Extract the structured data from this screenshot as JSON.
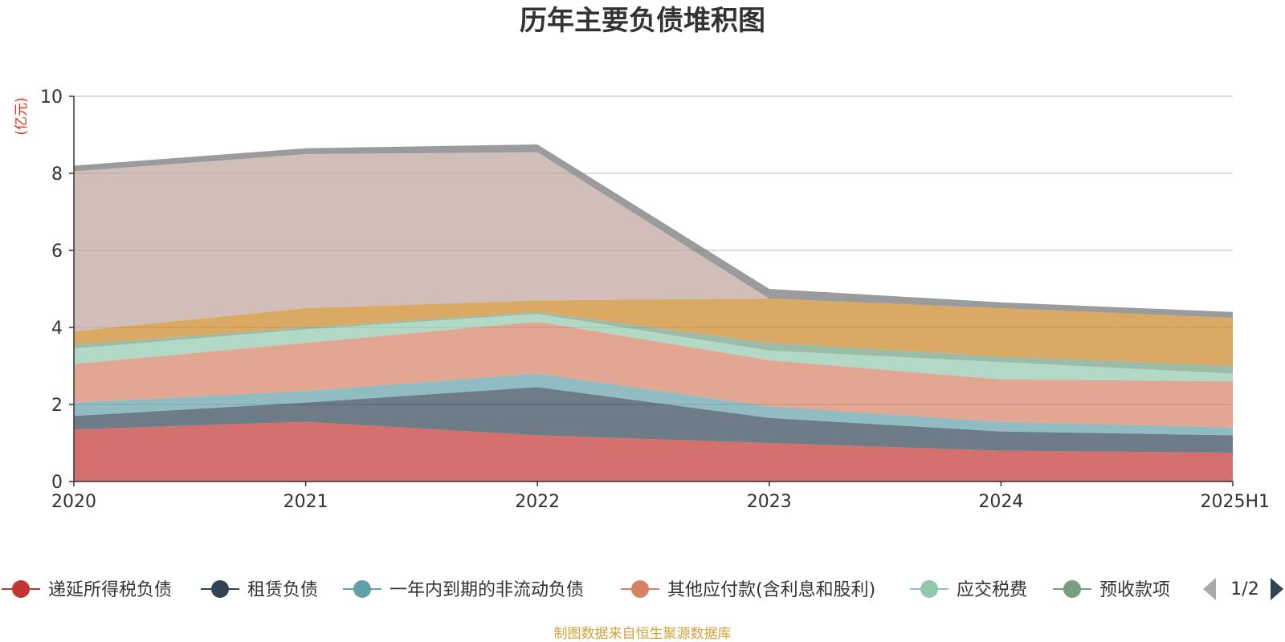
{
  "chart_data": {
    "type": "area",
    "stacked": true,
    "title": "历年主要负债堆积图",
    "unit": "(亿元)",
    "x": [
      "2020",
      "2021",
      "2022",
      "2023",
      "2024",
      "2025H1"
    ],
    "ylim": [
      0,
      10
    ],
    "yticks": [
      0,
      2,
      4,
      6,
      8,
      10
    ],
    "grid": true,
    "legend_position": "bottom",
    "legend_page": "1/2",
    "series": [
      {
        "name": "递延所得税负债",
        "color": "#c23531",
        "values": [
          1.35,
          1.55,
          1.2,
          1.0,
          0.8,
          0.75
        ]
      },
      {
        "name": "租赁负债",
        "color": "#2f4554",
        "values": [
          0.35,
          0.5,
          1.25,
          0.65,
          0.5,
          0.45
        ]
      },
      {
        "name": "一年内到期的非流动负债",
        "color": "#61a0a8",
        "values": [
          0.35,
          0.3,
          0.35,
          0.3,
          0.25,
          0.2
        ]
      },
      {
        "name": "其他应付款(含利息和股利)",
        "color": "#d48265",
        "values": [
          1.0,
          1.25,
          1.35,
          1.2,
          1.1,
          1.2
        ]
      },
      {
        "name": "应交税费",
        "color": "#91c7ae",
        "values": [
          0.4,
          0.35,
          0.2,
          0.25,
          0.45,
          0.2
        ]
      },
      {
        "name": "预收款项",
        "color": "#749f83",
        "values": [
          0.1,
          0.05,
          0.05,
          0.2,
          0.15,
          0.2
        ]
      },
      {
        "name": "",
        "color": "#ca8622",
        "values": [
          0.35,
          0.5,
          0.3,
          1.15,
          1.25,
          1.25
        ]
      },
      {
        "name": "",
        "color": "#bda29a",
        "values": [
          4.15,
          4.0,
          3.85,
          0.0,
          0.0,
          0.0
        ]
      },
      {
        "name": "",
        "color": "#6e7074",
        "values": [
          0.15,
          0.15,
          0.2,
          0.25,
          0.15,
          0.15
        ]
      }
    ],
    "source": "制图数据来自恒生聚源数据库"
  }
}
